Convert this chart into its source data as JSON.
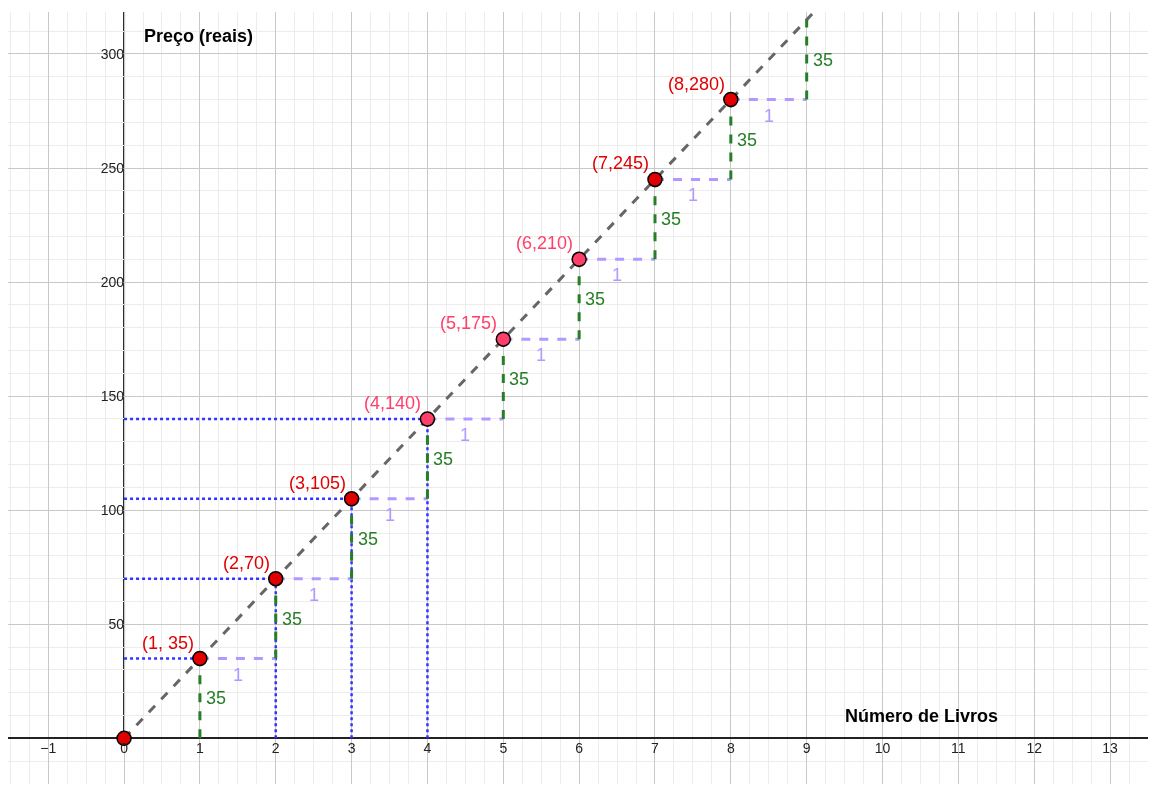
{
  "chart_data": {
    "type": "line",
    "xlabel": "Número de Livros",
    "ylabel": "Preço (reais)",
    "xlim": [
      -1.53,
      13.5
    ],
    "ylim": [
      -20,
      318.4
    ],
    "xticks": [
      {
        "value": -1,
        "label": "−1"
      },
      0,
      1,
      2,
      3,
      4,
      5,
      6,
      7,
      8,
      9,
      10,
      11,
      12,
      13
    ],
    "yticks": [
      50,
      100,
      150,
      200,
      250,
      300
    ],
    "grid": true,
    "series": [
      {
        "color": "#666666",
        "line_style": "dashed",
        "x": [
          0,
          9.08
        ],
        "values": [
          0,
          317.8
        ]
      },
      {
        "color": "#3333ff",
        "line_style": "dotted",
        "x": [
          0,
          1
        ],
        "values": [
          35,
          35
        ]
      },
      {
        "color": "#3333ff",
        "line_style": "dotted",
        "x": [
          0,
          2
        ],
        "values": [
          70,
          70
        ]
      },
      {
        "color": "#3333ff",
        "line_style": "dotted",
        "x": [
          0,
          3
        ],
        "values": [
          105,
          105
        ]
      },
      {
        "color": "#3333ff",
        "line_style": "dotted",
        "x": [
          0,
          4
        ],
        "values": [
          140,
          140
        ]
      },
      {
        "color": "#3333ff",
        "line_style": "dotted",
        "x": [
          2,
          2
        ],
        "values": [
          0,
          70
        ]
      },
      {
        "color": "#3333ff",
        "line_style": "dotted",
        "x": [
          3,
          3
        ],
        "values": [
          0,
          105
        ]
      },
      {
        "color": "#3333ff",
        "line_style": "dotted",
        "x": [
          4,
          4
        ],
        "values": [
          0,
          140
        ]
      },
      {
        "color": "#b399ff",
        "line_style": "dashed",
        "x": [
          1,
          2
        ],
        "values": [
          35,
          35
        ]
      },
      {
        "color": "#b399ff",
        "line_style": "dashed",
        "x": [
          2,
          3
        ],
        "values": [
          70,
          70
        ]
      },
      {
        "color": "#b399ff",
        "line_style": "dashed",
        "x": [
          3,
          4
        ],
        "values": [
          105,
          105
        ]
      },
      {
        "color": "#b399ff",
        "line_style": "dashed",
        "x": [
          4,
          5
        ],
        "values": [
          140,
          140
        ]
      },
      {
        "color": "#b399ff",
        "line_style": "dashed",
        "x": [
          5,
          6
        ],
        "values": [
          175,
          175
        ]
      },
      {
        "color": "#b399ff",
        "line_style": "dashed",
        "x": [
          6,
          7
        ],
        "values": [
          210,
          210
        ]
      },
      {
        "color": "#b399ff",
        "line_style": "dashed",
        "x": [
          7,
          8
        ],
        "values": [
          245,
          245
        ]
      },
      {
        "color": "#b399ff",
        "line_style": "dashed",
        "x": [
          8,
          9
        ],
        "values": [
          280,
          280
        ]
      },
      {
        "color": "#267f26",
        "line_style": "dashed",
        "x": [
          1,
          1
        ],
        "values": [
          0,
          35
        ]
      },
      {
        "color": "#267f26",
        "line_style": "dashed",
        "x": [
          2,
          2
        ],
        "values": [
          35,
          70
        ]
      },
      {
        "color": "#267f26",
        "line_style": "dashed",
        "x": [
          3,
          3
        ],
        "values": [
          70,
          105
        ]
      },
      {
        "color": "#267f26",
        "line_style": "dashed",
        "x": [
          4,
          4
        ],
        "values": [
          105,
          140
        ]
      },
      {
        "color": "#267f26",
        "line_style": "dashed",
        "x": [
          5,
          5
        ],
        "values": [
          140,
          175
        ]
      },
      {
        "color": "#267f26",
        "line_style": "dashed",
        "x": [
          6,
          6
        ],
        "values": [
          175,
          210
        ]
      },
      {
        "color": "#267f26",
        "line_style": "dashed",
        "x": [
          7,
          7
        ],
        "values": [
          210,
          245
        ]
      },
      {
        "color": "#267f26",
        "line_style": "dashed",
        "x": [
          8,
          8
        ],
        "values": [
          245,
          280
        ]
      },
      {
        "color": "#267f26",
        "line_style": "dashed",
        "x": [
          9,
          9
        ],
        "values": [
          280,
          315
        ]
      },
      {
        "type": "scatter",
        "marker": "circle",
        "x": [
          0,
          1,
          2,
          3,
          4,
          5,
          6,
          7,
          8
        ],
        "values": [
          0,
          35,
          70,
          105,
          140,
          175,
          210,
          245,
          280
        ],
        "colors": [
          "#e00000",
          "#e00000",
          "#e00000",
          "#e00000",
          "#ff3f6a",
          "#ff3f6a",
          "#ff3f6a",
          "#e00000",
          "#e00000"
        ]
      }
    ],
    "annotations": [
      {
        "text": "(1, 35)",
        "x": 1,
        "y": 35
      },
      {
        "text": "(2,70)",
        "x": 2,
        "y": 70
      },
      {
        "text": "(3,105)",
        "x": 3,
        "y": 105
      },
      {
        "text": "(4,140)",
        "x": 4,
        "y": 140
      },
      {
        "text": "(5,175)",
        "x": 5,
        "y": 175
      },
      {
        "text": "(6,210)",
        "x": 6,
        "y": 210
      },
      {
        "text": "(7,245)",
        "x": 7,
        "y": 245
      },
      {
        "text": "(8,280)",
        "x": 8,
        "y": 280
      },
      {
        "text": "1",
        "x": 1.5,
        "y": 35
      },
      {
        "text": "1",
        "x": 2.5,
        "y": 70
      },
      {
        "text": "1",
        "x": 3.5,
        "y": 105
      },
      {
        "text": "1",
        "x": 4.5,
        "y": 140
      },
      {
        "text": "1",
        "x": 5.5,
        "y": 175
      },
      {
        "text": "1",
        "x": 6.5,
        "y": 210
      },
      {
        "text": "1",
        "x": 7.5,
        "y": 245
      },
      {
        "text": "1",
        "x": 8.5,
        "y": 280
      },
      {
        "text": "35",
        "x": 1,
        "y": 17.5
      },
      {
        "text": "35",
        "x": 2,
        "y": 52.5
      },
      {
        "text": "35",
        "x": 3,
        "y": 87.5
      },
      {
        "text": "35",
        "x": 4,
        "y": 122.5
      },
      {
        "text": "35",
        "x": 5,
        "y": 157.5
      },
      {
        "text": "35",
        "x": 6,
        "y": 192.5
      },
      {
        "text": "35",
        "x": 7,
        "y": 227.5
      },
      {
        "text": "35",
        "x": 8,
        "y": 262.5
      },
      {
        "text": "35",
        "x": 9,
        "y": 297.5
      }
    ]
  }
}
